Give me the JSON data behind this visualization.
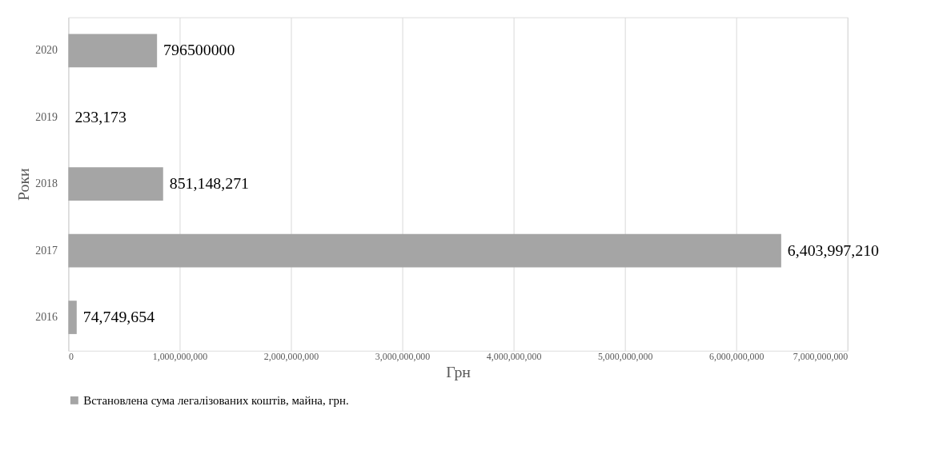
{
  "chart_data": {
    "type": "bar",
    "orientation": "horizontal",
    "xlabel": "Грн",
    "ylabel": "Роки",
    "categories": [
      "2020",
      "2019",
      "2018",
      "2017",
      "2016"
    ],
    "series": [
      {
        "name": "Встановлена сума легалізованих коштів, майна, грн.",
        "color": "#a5a5a5",
        "values": [
          796500000,
          233173,
          851148271,
          6403997210,
          74749654
        ],
        "value_labels": [
          "796500000",
          "233,173",
          "851,148,271",
          "6,403,997,210",
          "74,749,654"
        ]
      }
    ],
    "xlim": [
      0,
      7000000000
    ],
    "xticks": [
      0,
      {
        "value": 1000000000,
        "label": "1,000,000,000"
      },
      {
        "value": 2000000000,
        "label": "2,000,000,000"
      },
      {
        "value": 3000000000,
        "label": "3,000,000,000"
      },
      {
        "value": 4000000000,
        "label": "4,000,000,000"
      },
      {
        "value": 5000000000,
        "label": "5,000,000,000"
      },
      {
        "value": 6000000000,
        "label": "6,000,000,000"
      },
      {
        "value": 7000000000,
        "label": "7,000,000,000"
      }
    ],
    "grid": "x",
    "legend": "bottom"
  }
}
